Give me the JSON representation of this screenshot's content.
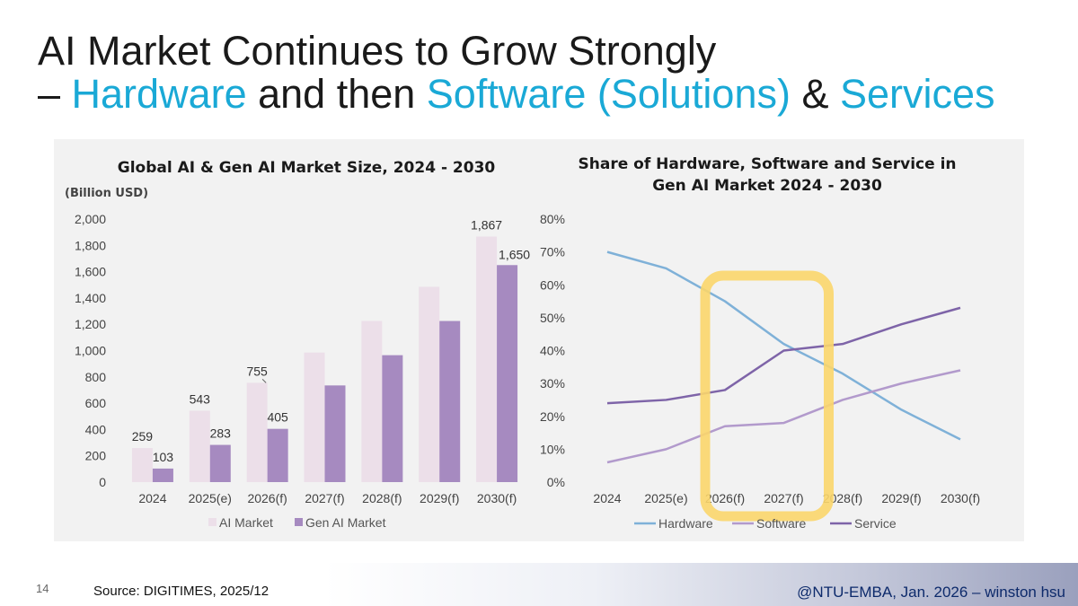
{
  "slide": {
    "title_line1": "AI Market Continues to Grow Strongly",
    "title_line2_prefix": "– ",
    "title_line2_hardware": "Hardware",
    "title_line2_mid": " and then ",
    "title_line2_software": "Software (Solutions)",
    "title_line2_amp": " & ",
    "title_line2_services": "Services",
    "page_number": "14",
    "source": "Source: DIGITIMES, 2025/12",
    "credit": "@NTU-EMBA, Jan. 2026 – winston hsu",
    "accent_color": "#1aa9d6"
  },
  "chart_data": [
    {
      "type": "bar",
      "title": "Global AI & Gen AI Market Size, 2024 - 2030",
      "ylabel": "(Billion USD)",
      "categories": [
        "2024",
        "2025(e)",
        "2026(f)",
        "2027(f)",
        "2028(f)",
        "2029(f)",
        "2030(f)"
      ],
      "series": [
        {
          "name": "AI Market",
          "color": "#ecdfe9",
          "values": [
            259,
            543,
            755,
            985,
            1225,
            1485,
            1867
          ],
          "labels": [
            "259",
            "543",
            "755",
            "",
            "",
            "",
            "1,867"
          ]
        },
        {
          "name": "Gen AI Market",
          "color": "#a68ac0",
          "values": [
            103,
            283,
            405,
            735,
            965,
            1225,
            1650
          ],
          "labels": [
            "103",
            "283",
            "405",
            "",
            "",
            "",
            "1,650"
          ]
        }
      ],
      "ylim": [
        0,
        2000
      ],
      "yticks": [
        0,
        200,
        400,
        600,
        800,
        1000,
        1200,
        1400,
        1600,
        1800,
        2000
      ],
      "ytick_labels": [
        "0",
        "200",
        "400",
        "600",
        "800",
        "1,000",
        "1,200",
        "1,400",
        "1,600",
        "1,800",
        "2,000"
      ],
      "legend": "bottom"
    },
    {
      "type": "line",
      "title_line1": "Share of Hardware, Software and Service in",
      "title_line2": "Gen AI Market 2024 - 2030",
      "categories": [
        "2024",
        "2025(e)",
        "2026(f)",
        "2027(f)",
        "2028(f)",
        "2029(f)",
        "2030(f)"
      ],
      "series": [
        {
          "name": "Hardware",
          "color": "#7fb1d8",
          "values": [
            70,
            65,
            55,
            42,
            33,
            22,
            13
          ]
        },
        {
          "name": "Software",
          "color": "#b29acc",
          "values": [
            6,
            10,
            17,
            18,
            25,
            30,
            34
          ]
        },
        {
          "name": "Service",
          "color": "#7e64a8",
          "values": [
            24,
            25,
            28,
            40,
            42,
            48,
            53
          ]
        }
      ],
      "ylim": [
        0,
        80
      ],
      "yticks": [
        0,
        10,
        20,
        30,
        40,
        50,
        60,
        70,
        80
      ],
      "ytick_labels": [
        "0%",
        "10%",
        "20%",
        "30%",
        "40%",
        "50%",
        "60%",
        "70%",
        "80%"
      ],
      "highlight": {
        "from": "2026(f)",
        "to": "2027(f)",
        "color": "#fbd66b"
      },
      "legend": "bottom"
    }
  ]
}
